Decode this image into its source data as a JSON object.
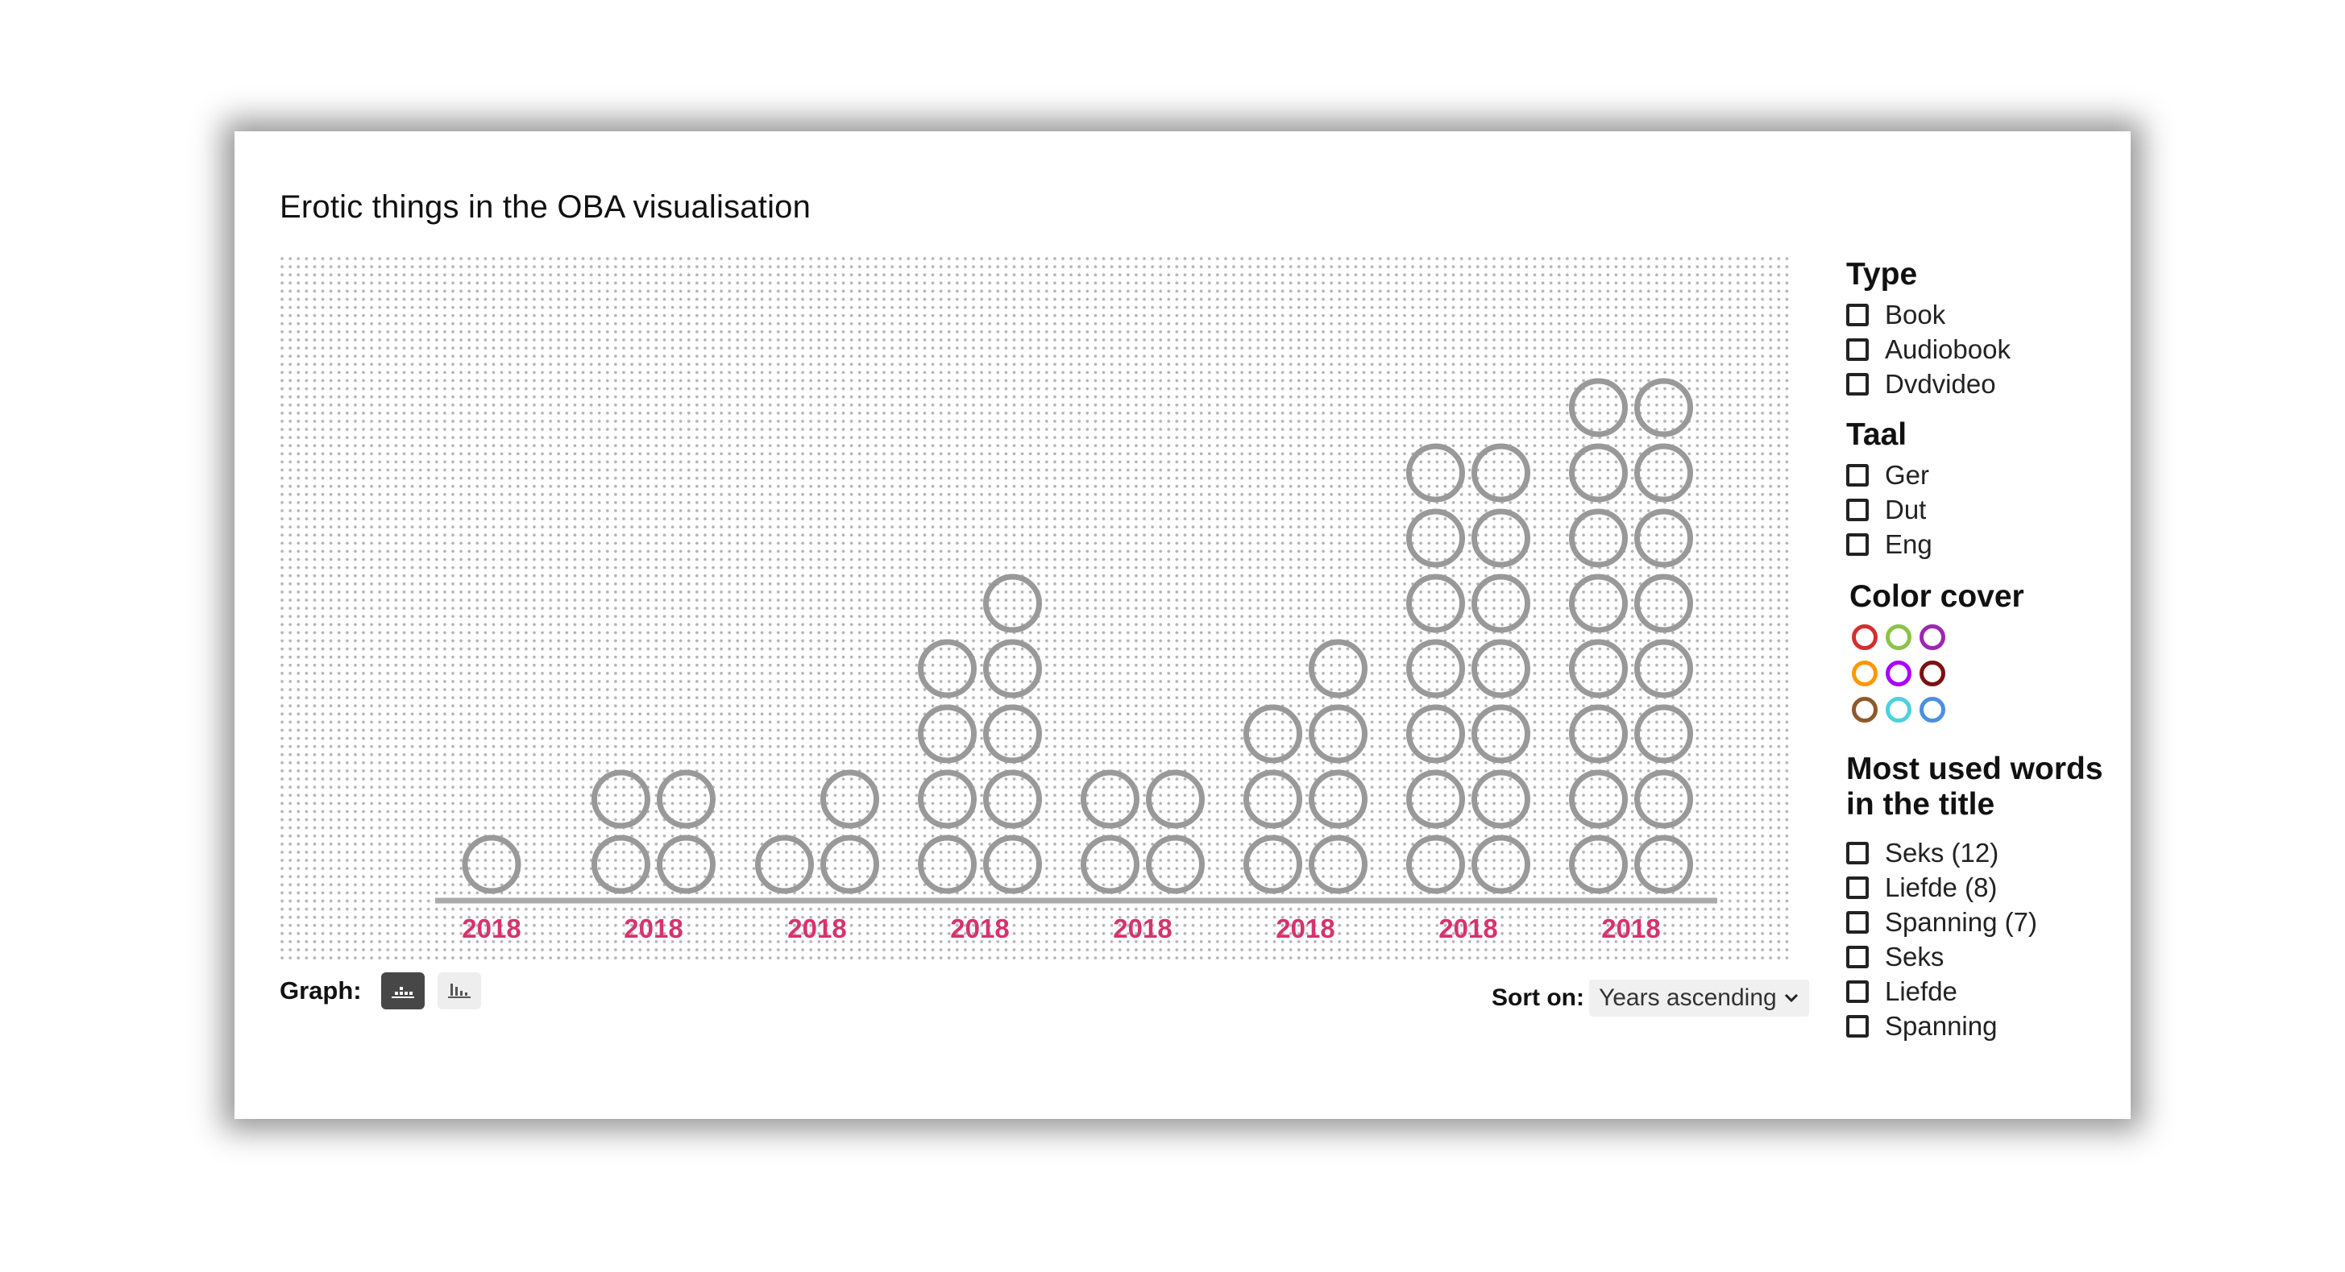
{
  "title": "Erotic things in the OBA visualisation",
  "chart_data": {
    "type": "scatter",
    "style": "stacked-dot-columns",
    "categories": [
      "2018",
      "2018",
      "2018",
      "2018",
      "2018",
      "2018",
      "2018",
      "2018"
    ],
    "columns": [
      [
        1
      ],
      [
        2,
        2
      ],
      [
        1,
        2
      ],
      [
        4,
        5
      ],
      [
        2,
        2
      ],
      [
        3,
        4
      ],
      [
        7,
        7
      ],
      [
        8,
        8
      ]
    ],
    "grid": true
  },
  "graph": {
    "label": "Graph:",
    "buttons": [
      {
        "icon": "dot-chart-icon",
        "active": true
      },
      {
        "icon": "bar-chart-icon",
        "active": false
      }
    ]
  },
  "sort": {
    "label": "Sort on:",
    "value": "Years ascending"
  },
  "filters": {
    "type": {
      "title": "Type",
      "items": [
        "Book",
        "Audiobook",
        "Dvdvideo"
      ]
    },
    "taal": {
      "title": "Taal",
      "items": [
        "Ger",
        "Dut",
        "Eng"
      ]
    },
    "color": {
      "title": "Color cover",
      "swatches": [
        "#d32f2f",
        "#8bc34a",
        "#9c27b0",
        "#ff9800",
        "#aa00ff",
        "#7b1111",
        "#8d5a2b",
        "#4dd0e1",
        "#4a90e2"
      ]
    },
    "words": {
      "title": "Most used words in the title",
      "items": [
        "Seks (12)",
        "Liefde (8)",
        "Spanning (7)",
        "Seks",
        "Liefde",
        "Spanning"
      ]
    }
  },
  "colors": {
    "dot": "#999999",
    "year": "#d6336c",
    "axis": "#aaaaaa"
  }
}
